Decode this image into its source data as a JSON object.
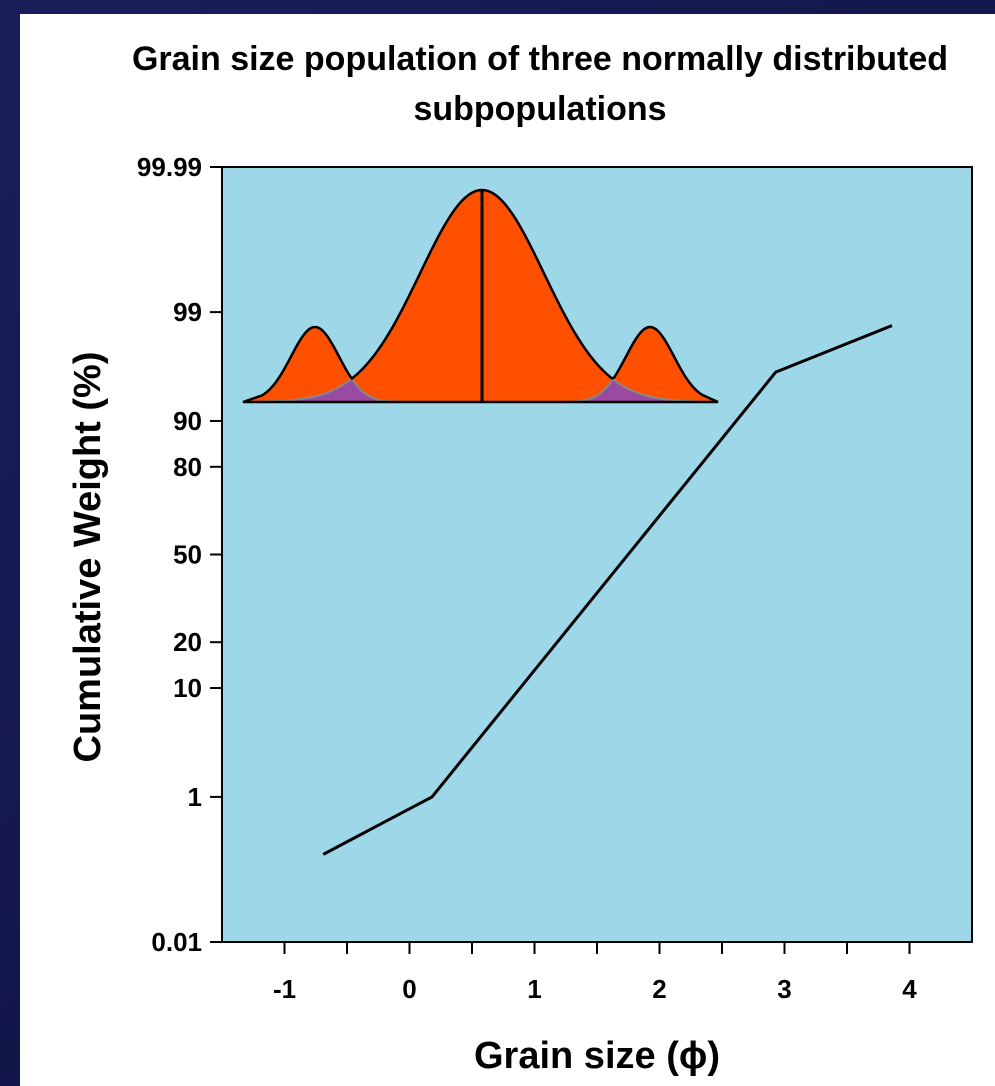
{
  "chart_data": {
    "type": "line",
    "title": "Grain size population of three normally distributed subpopulations",
    "x_label": "Grain size (ϕ)",
    "y_label": "Cumulative Weight (%)",
    "y_scale": "probability",
    "x": [
      -0.69,
      0.18,
      2.93,
      3.86
    ],
    "series": [
      {
        "color": "#000000",
        "values": [
          0.2,
          1,
          96,
          98.6
        ]
      }
    ],
    "xlim": [
      -1.5,
      4.5
    ],
    "xticks": [
      -1,
      0,
      1,
      2,
      3,
      4
    ],
    "ylim": [
      0.01,
      99.99
    ],
    "yticks": [
      0.01,
      1,
      10,
      20,
      50,
      80,
      90,
      99,
      99.99
    ],
    "plot_background": "#9ed8e8"
  }
}
